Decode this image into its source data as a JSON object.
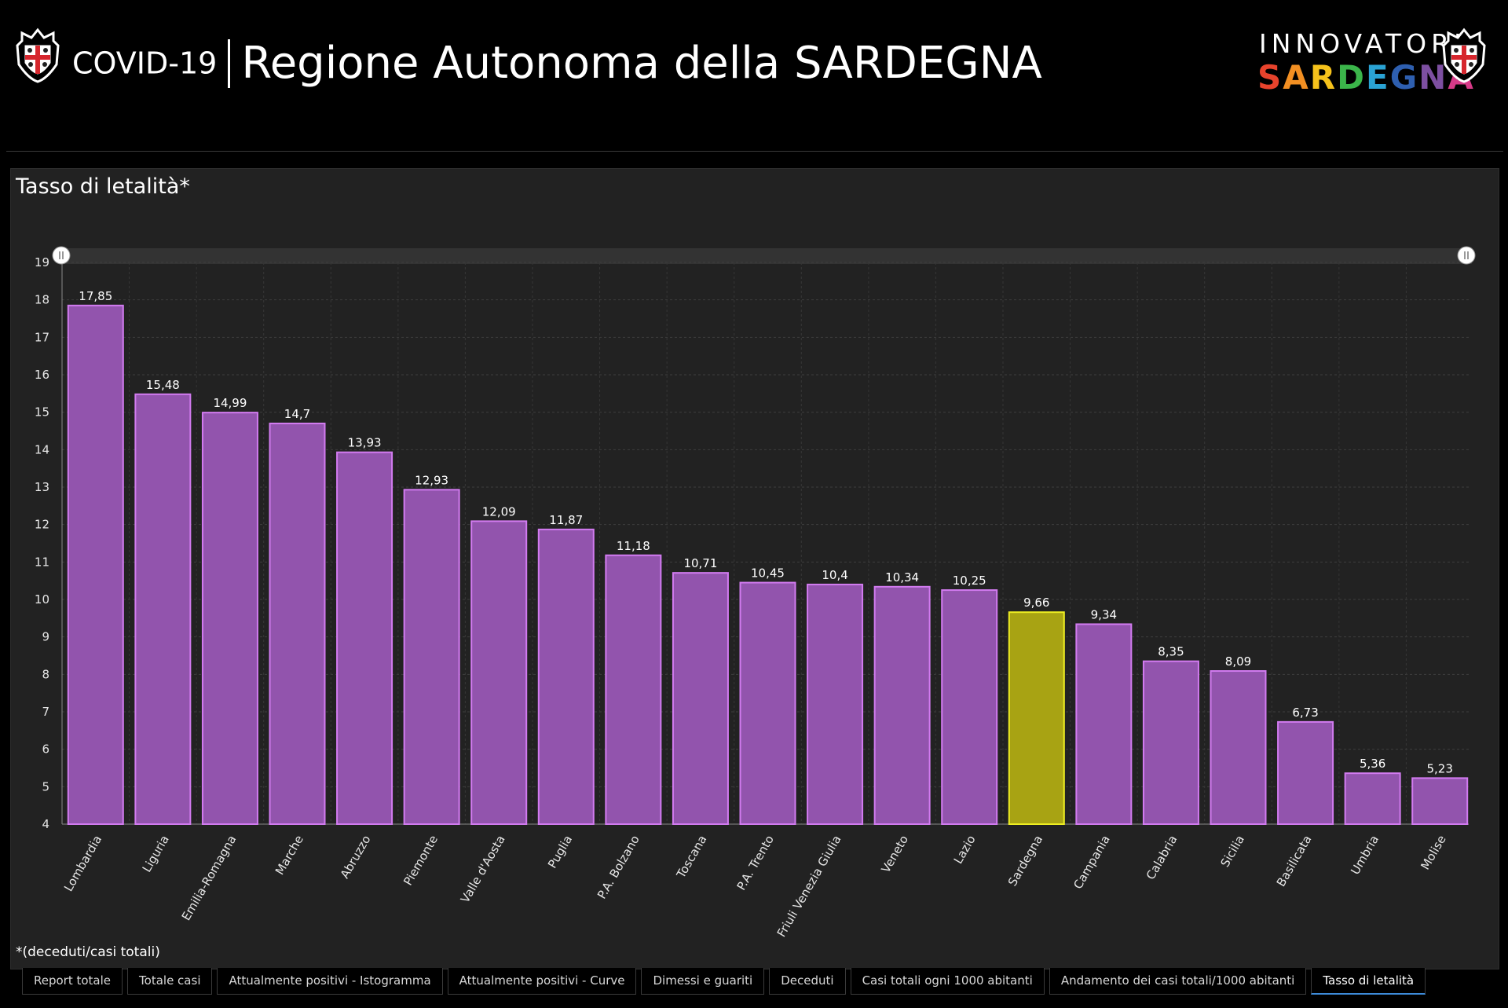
{
  "header": {
    "covid": "COVID-19",
    "region": "Regione Autonoma della SARDEGNA",
    "brand_line1": "INNOVATORI",
    "brand_line2": [
      "S",
      "A",
      "R",
      "D",
      "E",
      "G",
      "N",
      "A"
    ],
    "brand_colors": [
      "#e8432c",
      "#f28f22",
      "#f6c21b",
      "#3bb54a",
      "#2aa3d4",
      "#2e5fb0",
      "#7d4fa1",
      "#d63a88"
    ],
    "left_logo": "sardinia-crest-icon",
    "right_logo": "sardinia-crest-icon"
  },
  "panel": {
    "title": "Tasso di letalità*",
    "footnote": "*(deceduti/casi totali)"
  },
  "chart_data": {
    "type": "bar",
    "categories": [
      "Lombardia",
      "Liguria",
      "Emilia-Romagna",
      "Marche",
      "Abruzzo",
      "Piemonte",
      "Valle d'Aosta",
      "Puglia",
      "P.A. Bolzano",
      "Toscana",
      "P.A. Trento",
      "Friuli Venezia Giulia",
      "Veneto",
      "Lazio",
      "Sardegna",
      "Campania",
      "Calabria",
      "Sicilia",
      "Basilicata",
      "Umbria",
      "Molise"
    ],
    "values": [
      17.85,
      15.48,
      14.99,
      14.7,
      13.93,
      12.93,
      12.09,
      11.87,
      11.18,
      10.71,
      10.45,
      10.4,
      10.34,
      10.25,
      9.66,
      9.34,
      8.35,
      8.09,
      6.73,
      5.36,
      5.23
    ],
    "value_labels": [
      "17,85",
      "15,48",
      "14,99",
      "14,7",
      "13,93",
      "12,93",
      "12,09",
      "11,87",
      "11,18",
      "10,71",
      "10,45",
      "10,4",
      "10,34",
      "10,25",
      "9,66",
      "9,34",
      "8,35",
      "8,09",
      "6,73",
      "5,36",
      "5,23"
    ],
    "yticks": [
      4,
      5,
      6,
      7,
      8,
      9,
      10,
      11,
      12,
      13,
      14,
      15,
      16,
      17,
      18,
      19
    ],
    "ylim": [
      4,
      19
    ],
    "grid": true,
    "highlight": "Sardegna",
    "bar_color": "#9254ad",
    "bar_border": "#d27bf0",
    "highlight_color": "#a8a313",
    "highlight_border": "#eeee22"
  },
  "tabs": [
    {
      "label": "Report totale",
      "active": false
    },
    {
      "label": "Totale casi",
      "active": false
    },
    {
      "label": "Attualmente positivi - Istogramma",
      "active": false
    },
    {
      "label": "Attualmente positivi - Curve",
      "active": false
    },
    {
      "label": "Dimessi e guariti",
      "active": false
    },
    {
      "label": "Deceduti",
      "active": false
    },
    {
      "label": "Casi totali ogni 1000 abitanti",
      "active": false
    },
    {
      "label": "Andamento dei casi totali/1000 abitanti",
      "active": false
    },
    {
      "label": "Tasso di letalità",
      "active": true
    }
  ]
}
